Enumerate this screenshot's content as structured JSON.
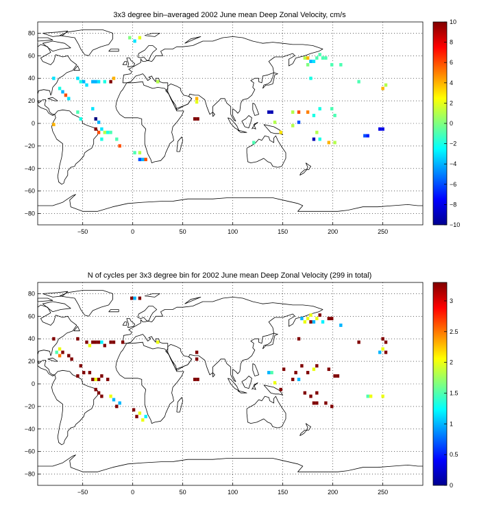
{
  "chart_data": [
    {
      "type": "heatmap",
      "title": "3x3 degree bin–averaged 2002 June mean Deep Zonal Velocity, cm/s",
      "xlabel": "",
      "ylabel": "",
      "xlim": [
        -95,
        290
      ],
      "ylim": [
        -90,
        90
      ],
      "xticks": [
        -50,
        0,
        50,
        100,
        150,
        200,
        250
      ],
      "yticks": [
        80,
        60,
        40,
        20,
        0,
        -20,
        -40,
        -60,
        -80
      ],
      "grid": true,
      "grid_style": "dotted",
      "bin_size_deg": 3,
      "colormap": "jet",
      "colorbar": {
        "min": -10,
        "max": 10,
        "ticks": [
          10,
          8,
          6,
          4,
          2,
          0,
          -2,
          -4,
          -6,
          -8,
          -10
        ],
        "placement": "right"
      },
      "points": [
        [
          -3,
          76,
          0
        ],
        [
          7,
          76,
          2
        ],
        [
          2,
          73,
          -3
        ],
        [
          -79,
          40,
          -3
        ],
        [
          -73,
          31,
          -2
        ],
        [
          -70,
          28,
          -4
        ],
        [
          -67,
          25,
          6
        ],
        [
          -64,
          22,
          -3
        ],
        [
          -55,
          40,
          -3
        ],
        [
          -52,
          37,
          -2
        ],
        [
          -49,
          37,
          -4
        ],
        [
          -46,
          34,
          -3
        ],
        [
          -40,
          37,
          -4
        ],
        [
          -37,
          37,
          -4
        ],
        [
          -34,
          37,
          -3
        ],
        [
          -28,
          37,
          -2
        ],
        [
          -22,
          37,
          10
        ],
        [
          -19,
          40,
          4
        ],
        [
          -55,
          10,
          -1
        ],
        [
          -52,
          4,
          -2
        ],
        [
          -40,
          13,
          -3
        ],
        [
          -37,
          4,
          -10
        ],
        [
          -34,
          1,
          -4
        ],
        [
          -37,
          -5,
          10
        ],
        [
          -34,
          -8,
          6
        ],
        [
          -31,
          -5,
          -3
        ],
        [
          -28,
          -8,
          1
        ],
        [
          -25,
          -8,
          -2
        ],
        [
          -22,
          -8,
          -1
        ],
        [
          -16,
          -14,
          -1
        ],
        [
          -13,
          -20,
          6
        ],
        [
          -31,
          -14,
          -2
        ],
        [
          2,
          -26,
          -1
        ],
        [
          7,
          -26,
          1
        ],
        [
          10,
          -32,
          -4
        ],
        [
          13,
          -32,
          6
        ],
        [
          7,
          -32,
          -6
        ],
        [
          25,
          37,
          1
        ],
        [
          64,
          22,
          4
        ],
        [
          64,
          19,
          2
        ],
        [
          62,
          4,
          10
        ],
        [
          65,
          4,
          10
        ],
        [
          175,
          58,
          4
        ],
        [
          178,
          55,
          -4
        ],
        [
          181,
          55,
          -3
        ],
        [
          184,
          58,
          -1
        ],
        [
          187,
          61,
          -1
        ],
        [
          190,
          58,
          -1
        ],
        [
          193,
          58,
          -1
        ],
        [
          172,
          58,
          1
        ],
        [
          175,
          52,
          0
        ],
        [
          199,
          52,
          -1
        ],
        [
          208,
          52,
          -1
        ],
        [
          178,
          40,
          -2
        ],
        [
          226,
          37,
          -1
        ],
        [
          250,
          31,
          4
        ],
        [
          253,
          34,
          1
        ],
        [
          136,
          10,
          -9
        ],
        [
          139,
          10,
          -9
        ],
        [
          160,
          10,
          1
        ],
        [
          166,
          10,
          6
        ],
        [
          175,
          10,
          5
        ],
        [
          181,
          7,
          -2
        ],
        [
          187,
          13,
          -2
        ],
        [
          199,
          13,
          -1
        ],
        [
          202,
          7,
          -1
        ],
        [
          142,
          1,
          1
        ],
        [
          160,
          -2,
          1
        ],
        [
          148,
          -8,
          3
        ],
        [
          184,
          -8,
          1
        ],
        [
          181,
          -14,
          -9
        ],
        [
          187,
          -14,
          -2
        ],
        [
          196,
          -17,
          4
        ],
        [
          202,
          -17,
          1
        ],
        [
          166,
          1,
          -6
        ],
        [
          121,
          -17,
          -1
        ],
        [
          232,
          -11,
          -6
        ],
        [
          235,
          -11,
          -7
        ],
        [
          247,
          -5,
          -8
        ],
        [
          250,
          -5,
          -8
        ],
        [
          -79,
          -1,
          4
        ]
      ]
    },
    {
      "type": "heatmap",
      "title": "N of cycles per 3x3 degree bin for 2002 June mean Deep Zonal Velocity (299 in total)",
      "xlabel": "",
      "ylabel": "",
      "xlim": [
        -95,
        290
      ],
      "ylim": [
        -90,
        90
      ],
      "xticks": [
        -50,
        0,
        50,
        100,
        150,
        200,
        250
      ],
      "yticks": [
        80,
        60,
        40,
        20,
        0,
        -20,
        -40,
        -60,
        -80
      ],
      "grid": true,
      "grid_style": "dotted",
      "bin_size_deg": 3,
      "colormap": "jet",
      "colorbar": {
        "min": 0,
        "max": 3.3,
        "ticks": [
          3,
          2.5,
          2,
          1.5,
          1,
          0.5,
          0
        ],
        "placement": "right"
      },
      "points": [
        [
          -1,
          76,
          3.3
        ],
        [
          2,
          76,
          1
        ],
        [
          7,
          76,
          3.3
        ],
        [
          -79,
          40,
          3.3
        ],
        [
          -55,
          40,
          3.3
        ],
        [
          -46,
          37,
          3.3
        ],
        [
          -43,
          34,
          2
        ],
        [
          -40,
          37,
          3.3
        ],
        [
          -37,
          37,
          3.3
        ],
        [
          -34,
          37,
          3.3
        ],
        [
          -31,
          37,
          1.2
        ],
        [
          -28,
          34,
          3.3
        ],
        [
          -22,
          37,
          3.3
        ],
        [
          -19,
          37,
          3.3
        ],
        [
          -10,
          37,
          3.3
        ],
        [
          -73,
          31,
          2
        ],
        [
          -70,
          28,
          3.3
        ],
        [
          -64,
          25,
          3.3
        ],
        [
          -61,
          22,
          3.3
        ],
        [
          -52,
          16,
          3.3
        ],
        [
          -55,
          7,
          3.3
        ],
        [
          -49,
          10,
          3.3
        ],
        [
          -43,
          10,
          3.3
        ],
        [
          -40,
          4,
          3.3
        ],
        [
          -37,
          4,
          2
        ],
        [
          -34,
          4,
          3.3
        ],
        [
          -31,
          7,
          3.3
        ],
        [
          -25,
          4,
          3.3
        ],
        [
          -37,
          -5,
          3.3
        ],
        [
          -34,
          -8,
          3.3
        ],
        [
          -31,
          -11,
          3.3
        ],
        [
          -22,
          -11,
          2
        ],
        [
          -19,
          -14,
          1
        ],
        [
          -16,
          -20,
          3.3
        ],
        [
          -13,
          -17,
          1
        ],
        [
          -76,
          28,
          1.5
        ],
        [
          -73,
          25,
          2.5
        ],
        [
          1,
          -23,
          3.3
        ],
        [
          7,
          -26,
          2
        ],
        [
          10,
          -32,
          2
        ],
        [
          13,
          -29,
          1.2
        ],
        [
          4,
          -29,
          3.3
        ],
        [
          25,
          37,
          2
        ],
        [
          64,
          28,
          3.3
        ],
        [
          64,
          22,
          3.3
        ],
        [
          62,
          4,
          3.3
        ],
        [
          65,
          4,
          3.3
        ],
        [
          175,
          58,
          2
        ],
        [
          178,
          55,
          3.3
        ],
        [
          181,
          55,
          1
        ],
        [
          184,
          58,
          2
        ],
        [
          187,
          61,
          3.3
        ],
        [
          190,
          55,
          1.2
        ],
        [
          178,
          61,
          2
        ],
        [
          196,
          58,
          3.3
        ],
        [
          199,
          58,
          3.3
        ],
        [
          208,
          52,
          1
        ],
        [
          169,
          58,
          1
        ],
        [
          172,
          55,
          2
        ],
        [
          166,
          40,
          3.3
        ],
        [
          226,
          37,
          3.3
        ],
        [
          250,
          40,
          3.3
        ],
        [
          253,
          37,
          3.3
        ],
        [
          250,
          31,
          2
        ],
        [
          247,
          28,
          1
        ],
        [
          253,
          28,
          3.3
        ],
        [
          136,
          10,
          1
        ],
        [
          139,
          10,
          1.5
        ],
        [
          151,
          13,
          3.3
        ],
        [
          163,
          10,
          3.3
        ],
        [
          169,
          16,
          3.3
        ],
        [
          175,
          10,
          3.3
        ],
        [
          181,
          13,
          2
        ],
        [
          184,
          16,
          3.3
        ],
        [
          196,
          13,
          3.3
        ],
        [
          202,
          7,
          3.3
        ],
        [
          205,
          7,
          3.3
        ],
        [
          142,
          1,
          2
        ],
        [
          160,
          4,
          3.3
        ],
        [
          166,
          4,
          1
        ],
        [
          148,
          -5,
          3.3
        ],
        [
          172,
          -8,
          3.3
        ],
        [
          178,
          -11,
          3.3
        ],
        [
          184,
          -8,
          3.3
        ],
        [
          181,
          -17,
          3.3
        ],
        [
          184,
          -17,
          3.3
        ],
        [
          193,
          -17,
          3.3
        ],
        [
          199,
          -20,
          3.3
        ],
        [
          235,
          -11,
          1.5
        ],
        [
          238,
          -11,
          2
        ],
        [
          250,
          -11,
          2
        ]
      ]
    }
  ]
}
